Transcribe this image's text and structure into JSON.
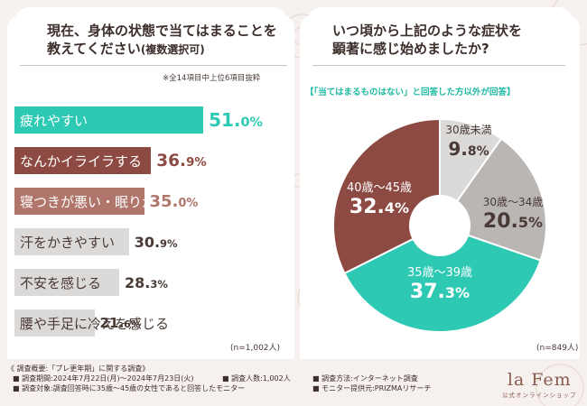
{
  "colors": {
    "teal": "#2ec9b3",
    "brown": "#8d4a42",
    "rose": "#b0766c",
    "gray": "#c9c6c4",
    "lightgray": "#dcdad8",
    "bg": "#f6f1ee"
  },
  "left": {
    "title_line1": "現在、身体の状態で当てはまることを",
    "title_line2": "教えてください",
    "title_sub": "(複数選択可)",
    "note": "※全14項目中上位6項目抜粋",
    "n_label": "(n=1,002人)"
  },
  "right": {
    "title_line1": "いつ頃から上記のような症状を",
    "title_line2": "顕著に感じ始めましたか?",
    "subtitle": "【「当てはまるものはない」と回答した方以外が回答】",
    "n_label": "(n=849人)"
  },
  "chart_data": [
    {
      "type": "bar",
      "orientation": "horizontal",
      "categories": [
        "疲れやすい",
        "なんかイライラする",
        "寝つきが悪い・眠りが浅い",
        "汗をかきやすい",
        "不安を感じる",
        "腰や手足に冷えを感じる"
      ],
      "values": [
        51.0,
        36.9,
        35.0,
        30.9,
        28.3,
        21.6
      ],
      "labels": [
        {
          "int": "51.",
          "dec": "0%"
        },
        {
          "int": "36.",
          "dec": "9%"
        },
        {
          "int": "35.",
          "dec": "0%"
        },
        {
          "int": "30.",
          "dec": "9%"
        },
        {
          "int": "28.",
          "dec": "3%"
        },
        {
          "int": "21.",
          "dec": "6%"
        }
      ],
      "bar_colors": [
        "#2ec9b3",
        "#8d4a42",
        "#b0766c",
        "#dcdad8",
        "#dcdad8",
        "#dcdad8"
      ],
      "text_colors": [
        "#ffffff",
        "#ffffff",
        "#ffffff",
        "#4a3a36",
        "#4a3a36",
        "#4a3a36"
      ],
      "pct_colors": [
        "#2ec9b3",
        "#8d4a42",
        "#b0766c",
        "#4a3a36",
        "#4a3a36",
        "#4a3a36"
      ]
    },
    {
      "type": "pie",
      "categories": [
        "30歳未満",
        "30歳～34歳",
        "35歳～39歳",
        "40歳～45歳"
      ],
      "values": [
        9.8,
        20.5,
        37.3,
        32.4
      ],
      "labels": [
        {
          "int": "9.",
          "dec": "8%"
        },
        {
          "int": "20.",
          "dec": "5%"
        },
        {
          "int": "37.",
          "dec": "3%"
        },
        {
          "int": "32.",
          "dec": "4%"
        }
      ],
      "slice_colors": [
        "#dcdad8",
        "#b9b6b4",
        "#2ec9b3",
        "#8d4a42"
      ],
      "label_colors": [
        "#4a3a36",
        "#4a3a36",
        "#ffffff",
        "#ffffff"
      ]
    }
  ],
  "footer": {
    "heading": "《 調査概要:「プレ更年期」に関する調査》",
    "period": "■ 調査期間:2024年7月22日(月)～2024年7月23日(火)",
    "count": "■ 調査人数:1,002人",
    "method": "■ 調査方法:インターネット調査",
    "target": "■ 調査対象:調査回答時に35歳～45歳の女性であると回答したモニター",
    "provider": "■ モニター提供元:PRIZMAリサーチ"
  },
  "logo": {
    "main": "la Fem",
    "sub": "公式オンラインショップ"
  }
}
